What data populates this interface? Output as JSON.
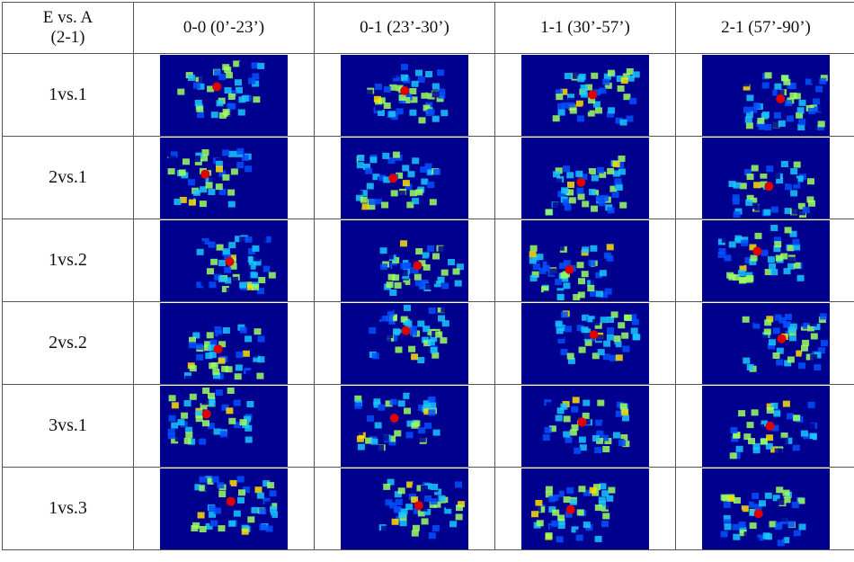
{
  "header": {
    "corner_line1": "E vs. A",
    "corner_line2": "(2-1)",
    "columns": [
      "0-0 (0’-23’)",
      "0-1 (23’-30’)",
      "1-1 (30’-57’)",
      "2-1 (57’-90’)"
    ]
  },
  "rows": [
    "1vs.1",
    "2vs.1",
    "1vs.2",
    "2vs.2",
    "3vs.1",
    "1vs.3"
  ],
  "colormap": {
    "low": "#00008f",
    "mid": "#19c8ff",
    "mid2": "#9cff5e",
    "mid3": "#ffe000",
    "high": "#e00000"
  }
}
